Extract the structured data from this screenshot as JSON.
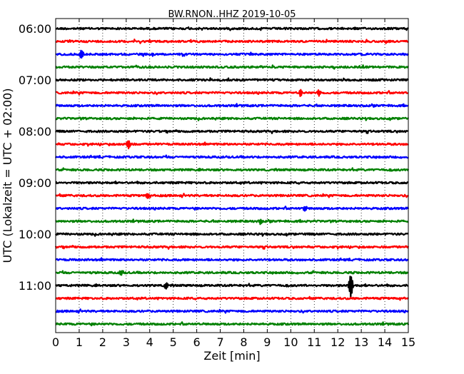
{
  "chart_data": {
    "type": "line",
    "title": "BW.RNON..HHZ 2019-10-05",
    "xlabel": "Zeit  [min]",
    "ylabel": "UTC (Lokalzeit = UTC + 02:00)",
    "xlim": [
      0,
      15
    ],
    "x_ticks": [
      "0",
      "1",
      "2",
      "3",
      "4",
      "5",
      "6",
      "7",
      "8",
      "9",
      "10",
      "11",
      "12",
      "13",
      "14",
      "15"
    ],
    "y_ticks": [
      "06:00",
      "07:00",
      "08:00",
      "09:00",
      "10:00",
      "11:00"
    ],
    "vertical_grid": "dotted",
    "trace_colors": [
      "#000000",
      "#ff0000",
      "#0000ff",
      "#008000"
    ],
    "traces": [
      {
        "start": "06:00",
        "events": []
      },
      {
        "start": "06:15",
        "events": []
      },
      {
        "start": "06:30",
        "events": [
          {
            "minute": 1.1,
            "amplitude": 0.6
          }
        ]
      },
      {
        "start": "06:45",
        "events": []
      },
      {
        "start": "07:00",
        "events": []
      },
      {
        "start": "07:15",
        "events": [
          {
            "minute": 10.4,
            "amplitude": 0.4
          },
          {
            "minute": 11.2,
            "amplitude": 0.4
          }
        ]
      },
      {
        "start": "07:30",
        "events": []
      },
      {
        "start": "07:45",
        "events": []
      },
      {
        "start": "08:00",
        "events": []
      },
      {
        "start": "08:15",
        "events": [
          {
            "minute": 3.1,
            "amplitude": 0.6
          }
        ]
      },
      {
        "start": "08:30",
        "events": []
      },
      {
        "start": "08:45",
        "events": []
      },
      {
        "start": "09:00",
        "events": []
      },
      {
        "start": "09:15",
        "events": [
          {
            "minute": 3.9,
            "amplitude": 0.4
          }
        ]
      },
      {
        "start": "09:30",
        "events": [
          {
            "minute": 10.6,
            "amplitude": 0.3
          }
        ]
      },
      {
        "start": "09:45",
        "events": [
          {
            "minute": 8.7,
            "amplitude": 0.3
          }
        ]
      },
      {
        "start": "10:00",
        "events": []
      },
      {
        "start": "10:15",
        "events": []
      },
      {
        "start": "10:30",
        "events": []
      },
      {
        "start": "10:45",
        "events": [
          {
            "minute": 2.8,
            "amplitude": 0.3
          }
        ]
      },
      {
        "start": "11:00",
        "events": [
          {
            "minute": 4.7,
            "amplitude": 0.4
          },
          {
            "minute": 12.55,
            "amplitude": 1.6
          }
        ]
      },
      {
        "start": "11:15",
        "events": []
      },
      {
        "start": "11:30",
        "events": []
      },
      {
        "start": "11:45",
        "events": []
      }
    ]
  }
}
